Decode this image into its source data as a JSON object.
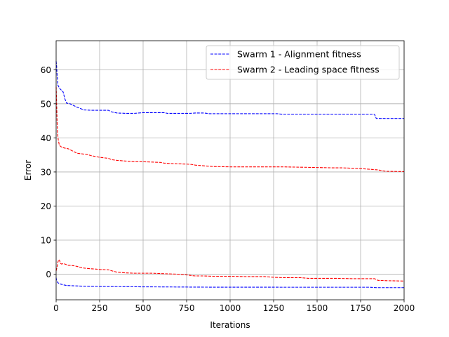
{
  "chart_data": {
    "type": "line",
    "xlabel": "Iterations",
    "ylabel": "Error",
    "xlim": [
      0,
      2000
    ],
    "ylim": [
      -7.5,
      68.5
    ],
    "xticks": [
      0,
      250,
      500,
      750,
      1000,
      1250,
      1500,
      1750,
      2000
    ],
    "yticks": [
      0,
      10,
      20,
      30,
      40,
      50,
      60
    ],
    "grid": true,
    "legend_position": "top-right",
    "series": [
      {
        "name": "Swarm 1 - Alignment fitness",
        "color": "#0000ff",
        "linestyle": "dashed",
        "in_legend": true,
        "x": [
          0,
          3,
          6,
          10,
          20,
          40,
          50,
          60,
          80,
          100,
          120,
          140,
          160,
          200,
          250,
          300,
          320,
          350,
          400,
          450,
          500,
          550,
          600,
          620,
          640,
          700,
          750,
          770,
          800,
          850,
          880,
          900,
          1000,
          1100,
          1200,
          1270,
          1300,
          1400,
          1500,
          1600,
          1700,
          1800,
          1830,
          1840,
          1900,
          2000
        ],
        "y": [
          62.5,
          61,
          58,
          55.5,
          54.5,
          53.5,
          51.5,
          50.2,
          50,
          49.5,
          49,
          48.6,
          48.2,
          48.1,
          48.1,
          48.1,
          47.6,
          47.3,
          47.2,
          47.2,
          47.4,
          47.4,
          47.4,
          47.4,
          47.2,
          47.2,
          47.2,
          47.2,
          47.3,
          47.3,
          47.1,
          47.1,
          47.1,
          47.1,
          47.1,
          47.1,
          46.9,
          46.9,
          46.9,
          46.9,
          46.9,
          46.9,
          46.9,
          45.7,
          45.7,
          45.7
        ]
      },
      {
        "name": "Swarm 2 - Leading space fitness",
        "color": "#ff0000",
        "linestyle": "dashed",
        "in_legend": true,
        "x": [
          0,
          2,
          4,
          6,
          8,
          12,
          18,
          25,
          35,
          50,
          70,
          100,
          120,
          150,
          180,
          200,
          230,
          250,
          300,
          320,
          350,
          400,
          450,
          500,
          550,
          600,
          620,
          650,
          700,
          750,
          780,
          800,
          850,
          900,
          1000,
          1100,
          1200,
          1300,
          1400,
          1500,
          1600,
          1650,
          1700,
          1750,
          1800,
          1850,
          1880,
          1900,
          2000
        ],
        "y": [
          55,
          52,
          48,
          44,
          41.5,
          39.5,
          38,
          37.5,
          37.2,
          37,
          36.8,
          36,
          35.5,
          35.3,
          35.1,
          34.8,
          34.5,
          34.3,
          34,
          33.6,
          33.4,
          33.2,
          33,
          33,
          32.9,
          32.8,
          32.6,
          32.5,
          32.4,
          32.3,
          32.2,
          32,
          31.8,
          31.6,
          31.5,
          31.5,
          31.5,
          31.5,
          31.4,
          31.3,
          31.2,
          31.2,
          31.1,
          31.0,
          30.8,
          30.6,
          30.3,
          30.2,
          30.1
        ]
      },
      {
        "name": "",
        "color": "#0000ff",
        "linestyle": "dashed",
        "in_legend": false,
        "x": [
          0,
          2,
          5,
          10,
          20,
          40,
          60,
          100,
          150,
          200,
          250,
          300,
          400,
          500,
          600,
          700,
          800,
          900,
          1000,
          1100,
          1200,
          1300,
          1400,
          1500,
          1600,
          1700,
          1800,
          1840,
          1900,
          2000
        ],
        "y": [
          -1,
          -1.8,
          -2.1,
          -2.5,
          -2.8,
          -3.1,
          -3.3,
          -3.4,
          -3.5,
          -3.55,
          -3.6,
          -3.62,
          -3.65,
          -3.7,
          -3.72,
          -3.75,
          -3.78,
          -3.8,
          -3.8,
          -3.8,
          -3.8,
          -3.82,
          -3.82,
          -3.82,
          -3.82,
          -3.82,
          -3.82,
          -3.95,
          -3.95,
          -3.95
        ]
      },
      {
        "name": "",
        "color": "#ff0000",
        "linestyle": "dashed",
        "in_legend": false,
        "x": [
          0,
          5,
          10,
          15,
          20,
          25,
          30,
          40,
          50,
          60,
          70,
          80,
          100,
          120,
          140,
          160,
          180,
          200,
          230,
          250,
          300,
          320,
          350,
          400,
          450,
          500,
          550,
          600,
          650,
          700,
          750,
          780,
          800,
          850,
          900,
          1000,
          1100,
          1200,
          1250,
          1300,
          1400,
          1450,
          1500,
          1600,
          1700,
          1800,
          1830,
          1850,
          1900,
          2000
        ],
        "y": [
          1,
          2,
          3.5,
          4.3,
          4,
          3.2,
          3,
          3.1,
          3,
          2.8,
          2.6,
          2.6,
          2.5,
          2.3,
          2,
          1.8,
          1.7,
          1.6,
          1.5,
          1.4,
          1.3,
          1,
          0.6,
          0.4,
          0.3,
          0.3,
          0.3,
          0.2,
          0.1,
          0,
          -0.2,
          -0.4,
          -0.5,
          -0.5,
          -0.6,
          -0.6,
          -0.7,
          -0.7,
          -0.9,
          -1,
          -1,
          -1.2,
          -1.2,
          -1.2,
          -1.3,
          -1.3,
          -1.3,
          -1.8,
          -1.9,
          -2
        ]
      }
    ]
  }
}
